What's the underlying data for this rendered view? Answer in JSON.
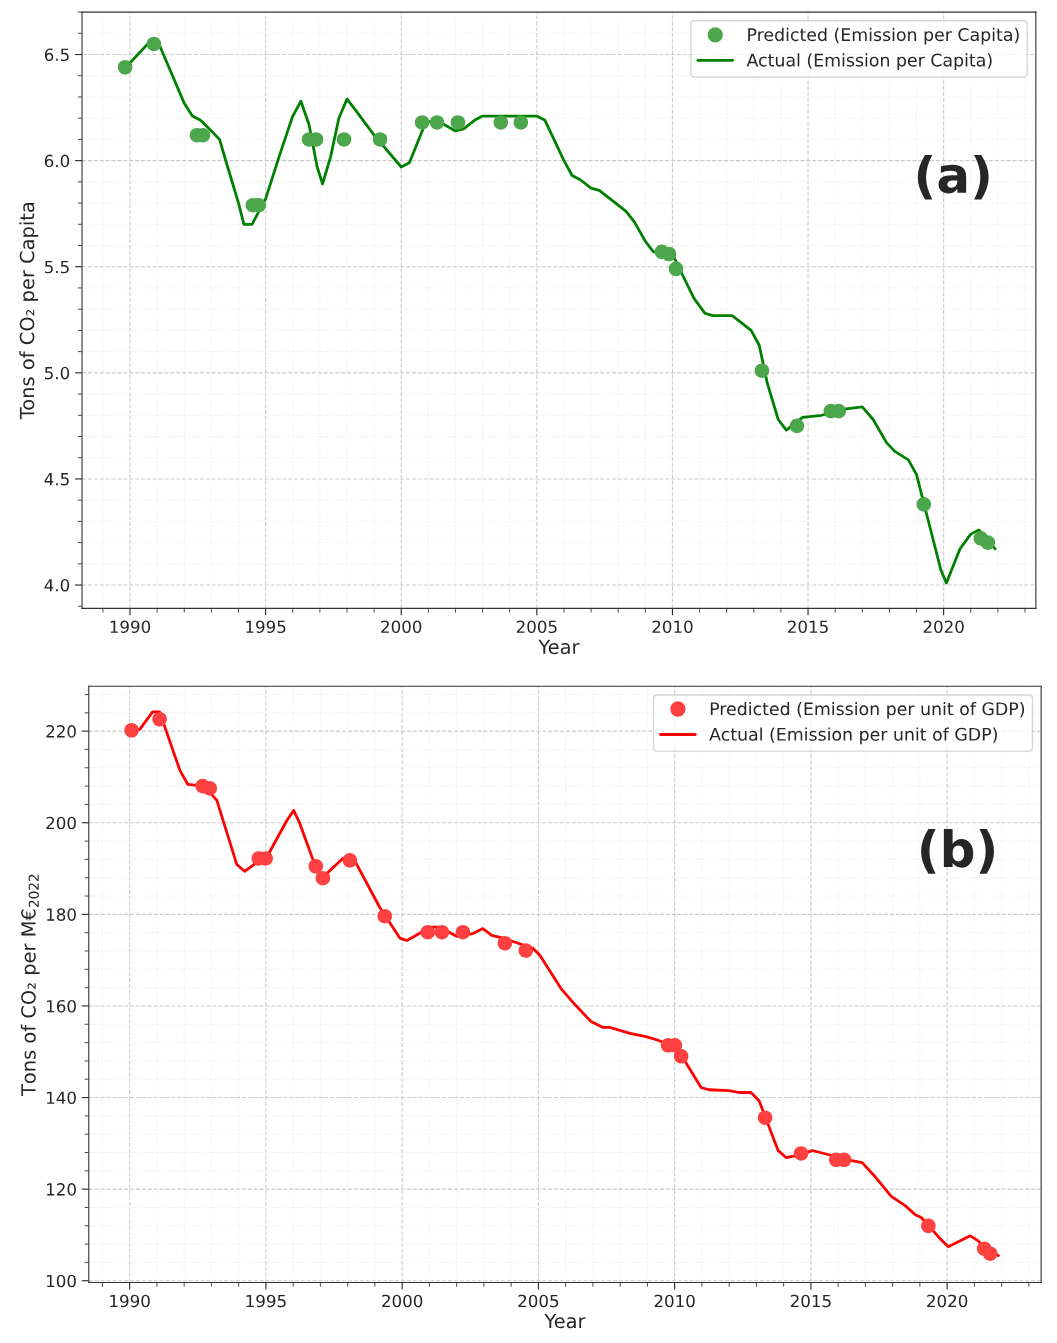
{
  "chart_data": [
    {
      "type": "line",
      "xlabel": "Year",
      "ylabel": "Tons of CO₂ per Capita",
      "annotations": [
        "(a)"
      ],
      "legend": "top right",
      "grid": true,
      "xlim": [
        1988.23,
        2023.4
      ],
      "ylim": [
        3.89,
        6.7
      ],
      "xticks": [
        1990,
        1995,
        2000,
        2005,
        2010,
        2015,
        2020
      ],
      "yticks": [
        {
          "value": 4.0,
          "label": "4.0"
        },
        4.5,
        {
          "value": 5.0,
          "label": "5.0"
        },
        5.5,
        {
          "value": 6.0,
          "label": "6.0"
        },
        6.5
      ],
      "series": [
        {
          "name": "Predicted (Emission per Capita)",
          "type": "scatter",
          "marker": "circle",
          "color": "#4ca64c",
          "x": [
            1989.82,
            1990.88,
            1992.47,
            1992.69,
            1994.53,
            1994.75,
            1996.6,
            1996.86,
            1997.89,
            1999.22,
            2000.77,
            2001.32,
            2002.09,
            2003.67,
            2004.41,
            2009.61,
            2009.87,
            2010.13,
            2013.3,
            2014.59,
            2015.84,
            2016.13,
            2019.27,
            2021.37,
            2021.63
          ],
          "values": [
            6.44,
            6.55,
            6.12,
            6.12,
            5.79,
            5.79,
            6.1,
            6.1,
            6.1,
            6.1,
            6.18,
            6.18,
            6.18,
            6.18,
            6.18,
            5.57,
            5.56,
            5.49,
            5.01,
            4.75,
            4.82,
            4.82,
            4.38,
            4.22,
            4.2
          ]
        },
        {
          "name": "Actual (Emission per Capita)",
          "marker": "none",
          "line_style": "solid",
          "color": "#008000",
          "x": [
            1989.85,
            1990.8,
            1991.0,
            1991.5,
            1992.0,
            1992.3,
            1992.6,
            1993.0,
            1993.3,
            1993.6,
            1994.0,
            1994.2,
            1994.5,
            1995.0,
            1995.5,
            1996.0,
            1996.3,
            1996.6,
            1996.9,
            1997.1,
            1997.4,
            1997.7,
            1998.0,
            1998.3,
            1999.0,
            2000.0,
            2000.3,
            2000.9,
            2001.3,
            2002.0,
            2002.3,
            2002.7,
            2003.0,
            2005.0,
            2005.3,
            2006.0,
            2006.3,
            2006.6,
            2007.0,
            2007.3,
            2008.0,
            2008.3,
            2008.6,
            2009.0,
            2009.3,
            2009.7,
            2010.0,
            2010.3,
            2010.8,
            2011.2,
            2011.5,
            2012.2,
            2012.5,
            2012.9,
            2013.2,
            2013.5,
            2013.9,
            2014.2,
            2014.8,
            2015.5,
            2016.4,
            2017.0,
            2017.4,
            2017.9,
            2018.2,
            2018.7,
            2019.0,
            2019.5,
            2019.9,
            2020.1,
            2020.6,
            2021.0,
            2021.3,
            2021.9
          ],
          "values": [
            6.44,
            6.57,
            6.57,
            6.42,
            6.27,
            6.21,
            6.19,
            6.14,
            6.1,
            5.97,
            5.8,
            5.7,
            5.7,
            5.82,
            6.02,
            6.21,
            6.28,
            6.17,
            5.97,
            5.89,
            6.02,
            6.2,
            6.29,
            6.24,
            6.12,
            5.97,
            5.99,
            6.18,
            6.19,
            6.14,
            6.15,
            6.19,
            6.21,
            6.21,
            6.19,
            6.0,
            5.93,
            5.91,
            5.87,
            5.86,
            5.79,
            5.76,
            5.71,
            5.62,
            5.57,
            5.57,
            5.56,
            5.48,
            5.35,
            5.28,
            5.27,
            5.27,
            5.24,
            5.2,
            5.13,
            4.95,
            4.78,
            4.73,
            4.79,
            4.8,
            4.83,
            4.84,
            4.78,
            4.67,
            4.63,
            4.59,
            4.52,
            4.27,
            4.07,
            4.01,
            4.17,
            4.24,
            4.26,
            4.17
          ]
        }
      ]
    },
    {
      "type": "line",
      "xlabel": "Year",
      "ylabel": "Tons of CO₂ per M€$_{2022}$",
      "annotations": [
        "(b)"
      ],
      "legend": "top right",
      "grid": true,
      "xlim": [
        1988.5,
        2023.45
      ],
      "ylim": [
        99.6,
        229.8
      ],
      "xticks": [
        1990,
        1995,
        2000,
        2005,
        2010,
        2015,
        2020
      ],
      "yticks": [
        100,
        120,
        140,
        160,
        180,
        200,
        220
      ],
      "series": [
        {
          "name": "Predicted (Emission per unit of GDP)",
          "type": "scatter",
          "marker": "circle",
          "color": "#ff4040",
          "x": [
            1990.07,
            1991.1,
            1992.68,
            1992.94,
            1994.74,
            1994.99,
            1996.83,
            1997.09,
            1998.08,
            1999.36,
            2000.94,
            2001.46,
            2002.23,
            2003.77,
            2004.54,
            2009.76,
            2010.01,
            2010.24,
            2013.32,
            2014.64,
            2015.93,
            2016.22,
            2019.31,
            2021.36,
            2021.58
          ],
          "values": [
            220.2,
            222.6,
            208.0,
            207.5,
            192.2,
            192.2,
            190.5,
            187.9,
            191.8,
            179.6,
            176.1,
            176.1,
            176.1,
            173.7,
            172.1,
            151.4,
            151.4,
            149.0,
            135.6,
            127.8,
            126.4,
            126.4,
            112.0,
            107.0,
            105.9
          ]
        },
        {
          "name": "Actual (Emission per unit of GDP)",
          "marker": "none",
          "line_style": "solid",
          "color": "#ff0000",
          "x": [
            1990.0,
            1990.37,
            1990.84,
            1991.1,
            1991.84,
            1992.13,
            1992.75,
            1993.2,
            1993.93,
            1994.22,
            1994.77,
            1995.07,
            1995.77,
            1996.02,
            1996.24,
            1996.87,
            1997.09,
            1997.82,
            1998.19,
            1999.18,
            1999.92,
            2000.17,
            2000.39,
            2001.02,
            2001.38,
            2002.0,
            2002.6,
            2002.96,
            2003.29,
            2003.7,
            2004.8,
            2005.06,
            2005.83,
            2006.34,
            2006.93,
            2007.37,
            2007.63,
            2008.36,
            2008.95,
            2009.39,
            2009.98,
            2010.27,
            2010.97,
            2011.26,
            2012.0,
            2012.37,
            2012.8,
            2013.1,
            2013.8,
            2014.09,
            2014.6,
            2015.05,
            2015.34,
            2016.5,
            2016.88,
            2017.36,
            2017.95,
            2018.46,
            2018.83,
            2019.05,
            2019.71,
            2020.04,
            2020.85,
            2021.14,
            2021.44,
            2021.88
          ],
          "values": [
            220.2,
            220.4,
            224.2,
            224.2,
            211.5,
            208.4,
            208.0,
            204.9,
            190.9,
            189.4,
            191.8,
            192.9,
            200.5,
            202.7,
            199.9,
            189.6,
            188.1,
            192.2,
            192.5,
            181.5,
            174.8,
            174.3,
            175.0,
            177.2,
            177.2,
            175.2,
            175.8,
            176.9,
            175.4,
            174.8,
            172.6,
            171.0,
            163.8,
            160.3,
            156.6,
            155.3,
            155.3,
            154.0,
            153.3,
            152.5,
            151.1,
            149.0,
            142.2,
            141.7,
            141.5,
            141.1,
            141.1,
            139.3,
            128.4,
            126.9,
            127.5,
            128.4,
            128.0,
            126.2,
            125.8,
            122.7,
            118.4,
            116.4,
            114.4,
            113.8,
            109.4,
            107.4,
            109.8,
            108.7,
            106.8,
            105.5
          ]
        }
      ]
    }
  ]
}
